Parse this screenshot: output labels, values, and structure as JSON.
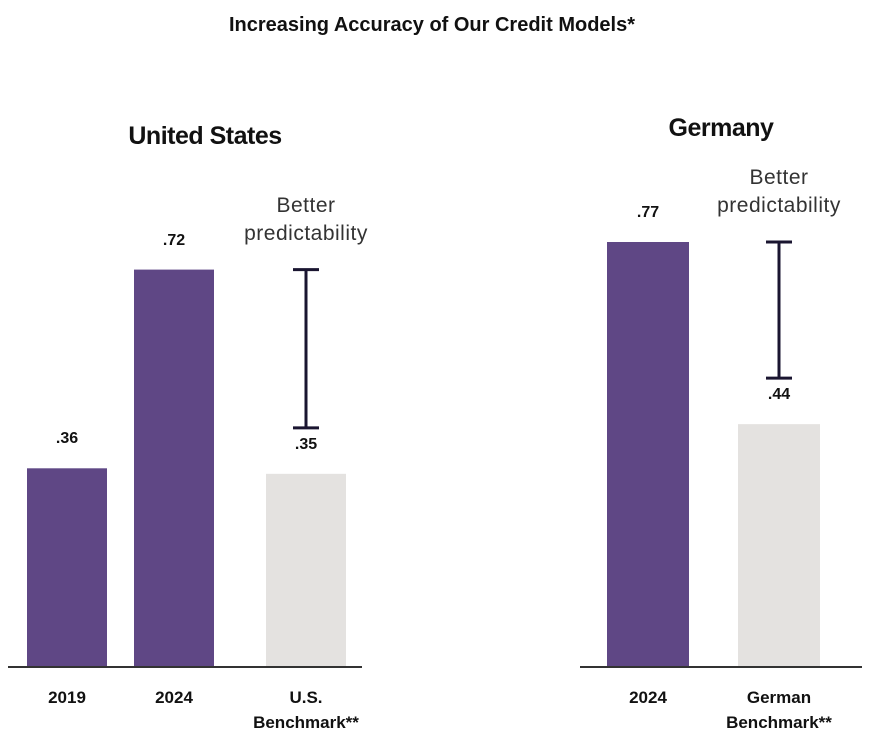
{
  "title": "Increasing Accuracy of Our Credit Models*",
  "chart_data": [
    {
      "type": "bar",
      "title": "United States",
      "categories": [
        "2019",
        "2024",
        "U.S. Benchmark**"
      ],
      "values": [
        0.36,
        0.72,
        0.35
      ],
      "value_labels": [
        ".36",
        ".72",
        ".35"
      ],
      "colors": [
        "#5f4785",
        "#5f4785",
        "#e4e2e0"
      ],
      "annotation": "Better predictability"
    },
    {
      "type": "bar",
      "title": "Germany",
      "categories": [
        "2024",
        "German Benchmark**"
      ],
      "values": [
        0.77,
        0.44
      ],
      "value_labels": [
        ".77",
        ".44"
      ],
      "colors": [
        "#5f4785",
        "#e4e2e0"
      ],
      "annotation": "Better predictability"
    }
  ]
}
